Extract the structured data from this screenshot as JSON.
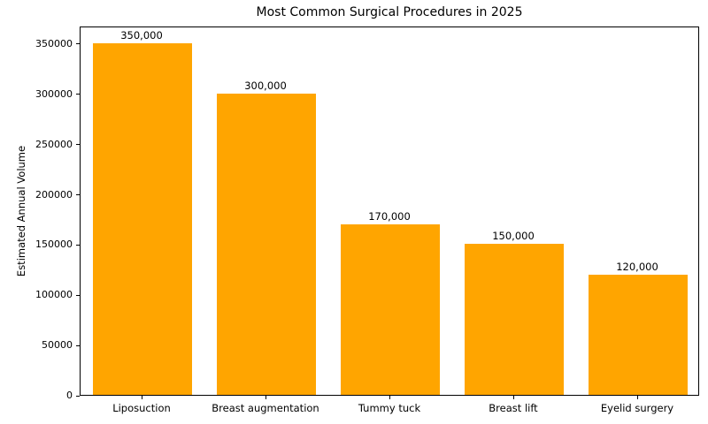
{
  "chart_data": {
    "type": "bar",
    "title": "Most Common Surgical Procedures in 2025",
    "xlabel": "",
    "ylabel": "Estimated Annual Volume",
    "categories": [
      "Liposuction",
      "Breast augmentation",
      "Tummy tuck",
      "Breast lift",
      "Eyelid surgery"
    ],
    "values": [
      350000,
      300000,
      170000,
      150000,
      120000
    ],
    "value_labels": [
      "350,000",
      "300,000",
      "170,000",
      "150,000",
      "120,000"
    ],
    "ytick_labels": [
      "0",
      "50000",
      "100000",
      "150000",
      "200000",
      "250000",
      "300000",
      "350000"
    ],
    "yticks": [
      0,
      50000,
      100000,
      150000,
      200000,
      250000,
      300000,
      350000
    ],
    "ylim": [
      0,
      367500
    ],
    "bar_color": "#FFA500",
    "grid": false,
    "legend": "none",
    "background_color": "#FFFFFF"
  }
}
